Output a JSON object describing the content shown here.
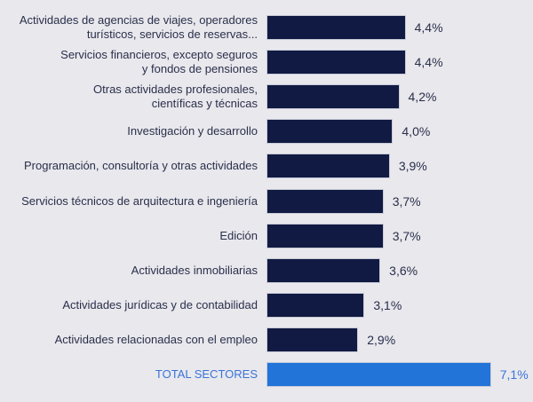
{
  "chart_data": {
    "type": "bar",
    "orientation": "horizontal",
    "title": "",
    "xlabel": "",
    "ylabel": "",
    "xlim": [
      0,
      7.1
    ],
    "grid": false,
    "legend": "none",
    "unit": "%",
    "colors": {
      "default": "#111a42",
      "total": "#2274d8",
      "total_text": "#3b74d9",
      "text": "#2a2f4a",
      "background": "#e8e8ed"
    },
    "categories": [
      [
        "Actividades de agencias de viajes, operadores",
        "turísticos, servicios de reservas..."
      ],
      [
        "Servicios financieros, excepto seguros",
        "y fondos de pensiones"
      ],
      [
        "Otras actividades profesionales,",
        "científicas y técnicas"
      ],
      [
        "Investigación y desarrollo"
      ],
      [
        "Programación, consultoría y otras actividades"
      ],
      [
        "Servicios técnicos de arquitectura e ingeniería"
      ],
      [
        "Edición"
      ],
      [
        "Actividades inmobiliarias"
      ],
      [
        "Actividades jurídicas y de contabilidad"
      ],
      [
        "Actividades relacionadas con el empleo"
      ],
      [
        "TOTAL SECTORES"
      ]
    ],
    "values": [
      4.4,
      4.4,
      4.2,
      4.0,
      3.9,
      3.7,
      3.7,
      3.6,
      3.1,
      2.9,
      7.1
    ],
    "value_labels": [
      "4,4%",
      "4,4%",
      "4,2%",
      "4,0%",
      "3,9%",
      "3,7%",
      "3,7%",
      "3,6%",
      "3,1%",
      "2,9%",
      "7,1%"
    ],
    "highlight_index": 10
  }
}
